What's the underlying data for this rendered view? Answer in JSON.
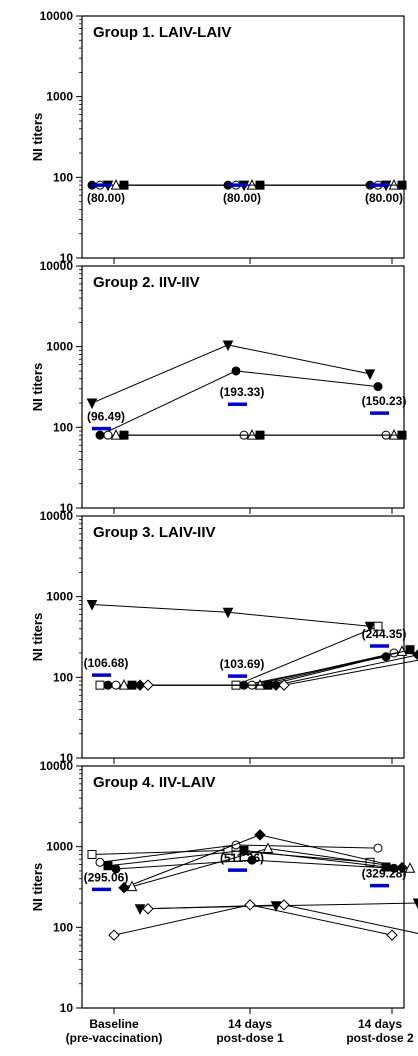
{
  "chart_data": [
    {
      "type": "line",
      "title": "Group 1. LAIV-LAIV",
      "ylabel": "NI titers",
      "yscale": "log",
      "ylim": [
        10,
        10000
      ],
      "yticks": [
        "10",
        "100",
        "1000",
        "10000"
      ],
      "categories": [
        "Baseline (pre-vaccination)",
        "14 days post-dose 1",
        "14 days post-dose 2"
      ],
      "geometric_mean": [
        80.0,
        80.0,
        80.0
      ],
      "gm_labels": [
        "(80.00)",
        "(80.00)",
        "(80.00)"
      ],
      "series": [
        {
          "marker": "circle-filled",
          "values": [
            80,
            80,
            80
          ]
        },
        {
          "marker": "circle-open",
          "values": [
            80,
            80,
            80
          ]
        },
        {
          "marker": "triangle-down-filled",
          "values": [
            80,
            80,
            80
          ]
        },
        {
          "marker": "triangle-up-open",
          "values": [
            80,
            80,
            80
          ]
        },
        {
          "marker": "square-filled",
          "values": [
            80,
            80,
            80
          ]
        }
      ]
    },
    {
      "type": "line",
      "title": "Group 2. IIV-IIV",
      "ylabel": "NI titers",
      "yscale": "log",
      "ylim": [
        10,
        10000
      ],
      "yticks": [
        "10",
        "100",
        "1000",
        "10000"
      ],
      "categories": [
        "Baseline (pre-vaccination)",
        "14 days post-dose 1",
        "14 days post-dose 2"
      ],
      "geometric_mean": [
        96.49,
        193.33,
        150.23
      ],
      "gm_labels": [
        "(96.49)",
        "(193.33)",
        "(150.23)"
      ],
      "series": [
        {
          "marker": "triangle-down-filled",
          "values": [
            200,
            1050,
            460
          ]
        },
        {
          "marker": "circle-filled",
          "values": [
            80,
            500,
            320
          ]
        },
        {
          "marker": "circle-open",
          "values": [
            80,
            80,
            80
          ]
        },
        {
          "marker": "triangle-up-open",
          "values": [
            80,
            80,
            80
          ]
        },
        {
          "marker": "square-filled",
          "values": [
            80,
            80,
            80
          ]
        }
      ]
    },
    {
      "type": "line",
      "title": "Group 3. LAIV-IIV",
      "ylabel": "NI titers",
      "yscale": "log",
      "ylim": [
        10,
        10000
      ],
      "yticks": [
        "10",
        "100",
        "1000",
        "10000"
      ],
      "categories": [
        "Baseline (pre-vaccination)",
        "14 days post-dose 1",
        "14 days post-dose 2"
      ],
      "geometric_mean": [
        106.68,
        103.69,
        244.35
      ],
      "gm_labels": [
        "(106.68)",
        "(103.69)",
        "(244.35)"
      ],
      "series": [
        {
          "marker": "triangle-down-filled",
          "values": [
            800,
            640,
            430
          ]
        },
        {
          "marker": "square-open",
          "values": [
            80,
            80,
            430
          ]
        },
        {
          "marker": "circle-filled",
          "values": [
            80,
            80,
            180
          ]
        },
        {
          "marker": "circle-open",
          "values": [
            80,
            80,
            200
          ]
        },
        {
          "marker": "triangle-up-open",
          "values": [
            80,
            80,
            210
          ]
        },
        {
          "marker": "square-filled",
          "values": [
            80,
            80,
            220
          ]
        },
        {
          "marker": "diamond-filled",
          "values": [
            80,
            80,
            190
          ]
        },
        {
          "marker": "diamond-open",
          "values": [
            80,
            80,
            170
          ]
        }
      ]
    },
    {
      "type": "line",
      "title": "Group 4. IIV-LAIV",
      "ylabel": "NI titers",
      "yscale": "log",
      "ylim": [
        10,
        10000
      ],
      "yticks": [
        "10",
        "100",
        "1000",
        "10000"
      ],
      "categories": [
        "Baseline (pre-vaccination)",
        "14 days post-dose 1",
        "14 days post-dose 2"
      ],
      "geometric_mean": [
        295.06,
        511.26,
        329.28
      ],
      "gm_labels": [
        "(295.06)",
        "(511.26)",
        "(329.28)"
      ],
      "series": [
        {
          "marker": "square-open",
          "values": [
            800,
            900,
            640
          ]
        },
        {
          "marker": "circle-open",
          "values": [
            640,
            1050,
            960
          ]
        },
        {
          "marker": "square-filled",
          "values": [
            580,
            900,
            560
          ]
        },
        {
          "marker": "circle-filled",
          "values": [
            530,
            680,
            540
          ]
        },
        {
          "marker": "diamond-filled",
          "values": [
            310,
            1400,
            550
          ]
        },
        {
          "marker": "triangle-up-open",
          "values": [
            320,
            950,
            540
          ]
        },
        {
          "marker": "triangle-down-filled",
          "values": [
            170,
            185,
            200
          ]
        },
        {
          "marker": "diamond-open",
          "values": [
            170,
            190,
            80
          ]
        },
        {
          "marker": "diamond-open",
          "values": [
            80,
            190,
            80
          ]
        }
      ]
    }
  ],
  "x_axis": {
    "tick_labels": [
      [
        "Baseline",
        "(pre-vaccination)"
      ],
      [
        "14 days",
        "post-dose 1"
      ],
      [
        "14 days",
        "post-dose 2"
      ]
    ]
  },
  "colors": {
    "series_stroke": "#000000",
    "geometric_mean_bar": "#0000cc",
    "axis": "#000000",
    "background": "#ffffff"
  }
}
